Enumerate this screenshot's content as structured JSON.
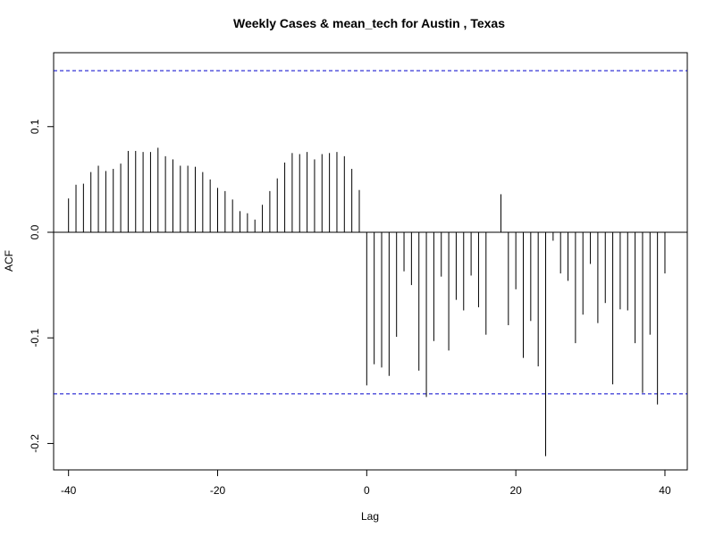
{
  "chart_data": {
    "type": "bar",
    "subtype": "cross-correlation stem plot",
    "title": "Weekly Cases & mean_tech for Austin , Texas",
    "xlabel": "Lag",
    "ylabel": "ACF",
    "xlim": [
      -42,
      43
    ],
    "ylim": [
      -0.225,
      0.17
    ],
    "x_ticks": [
      -40,
      -20,
      0,
      20,
      40
    ],
    "x_tick_labels": [
      "-40",
      "-20",
      "0",
      "20",
      "40"
    ],
    "y_ticks": [
      -0.2,
      -0.1,
      0.0,
      0.1
    ],
    "y_tick_labels": [
      "-0.2",
      "-0.1",
      "0.0",
      "0.1"
    ],
    "zero_line": 0,
    "confidence_bound": 0.153,
    "confidence_color": "#0000cc",
    "stem_color": "#000000",
    "grid": false,
    "lags": [
      -40,
      -39,
      -38,
      -37,
      -36,
      -35,
      -34,
      -33,
      -32,
      -31,
      -30,
      -29,
      -28,
      -27,
      -26,
      -25,
      -24,
      -23,
      -22,
      -21,
      -20,
      -19,
      -18,
      -17,
      -16,
      -15,
      -14,
      -13,
      -12,
      -11,
      -10,
      -9,
      -8,
      -7,
      -6,
      -5,
      -4,
      -3,
      -2,
      -1,
      0,
      1,
      2,
      3,
      4,
      5,
      6,
      7,
      8,
      9,
      10,
      11,
      12,
      13,
      14,
      15,
      16,
      17,
      18,
      19,
      20,
      21,
      22,
      23,
      24,
      25,
      26,
      27,
      28,
      29,
      30,
      31,
      32,
      33,
      34,
      35,
      36,
      37,
      38,
      39,
      40
    ],
    "values": [
      0.032,
      0.045,
      0.046,
      0.057,
      0.063,
      0.058,
      0.06,
      0.065,
      0.077,
      0.077,
      0.076,
      0.076,
      0.08,
      0.072,
      0.069,
      0.063,
      0.063,
      0.062,
      0.057,
      0.05,
      0.042,
      0.039,
      0.031,
      0.02,
      0.018,
      0.012,
      0.026,
      0.039,
      0.051,
      0.066,
      0.075,
      0.074,
      0.076,
      0.069,
      0.074,
      0.075,
      0.076,
      0.072,
      0.06,
      0.04,
      -0.145,
      -0.125,
      -0.128,
      -0.136,
      -0.099,
      -0.037,
      -0.05,
      -0.131,
      -0.156,
      -0.103,
      -0.042,
      -0.112,
      -0.064,
      -0.074,
      -0.041,
      -0.071,
      -0.097,
      0.0,
      0.036,
      -0.088,
      -0.054,
      -0.119,
      -0.084,
      -0.127,
      -0.212,
      -0.008,
      -0.039,
      -0.046,
      -0.105,
      -0.078,
      -0.03,
      -0.086,
      -0.067,
      -0.144,
      -0.073,
      -0.074,
      -0.105,
      -0.152,
      -0.097,
      -0.163,
      -0.039
    ]
  }
}
